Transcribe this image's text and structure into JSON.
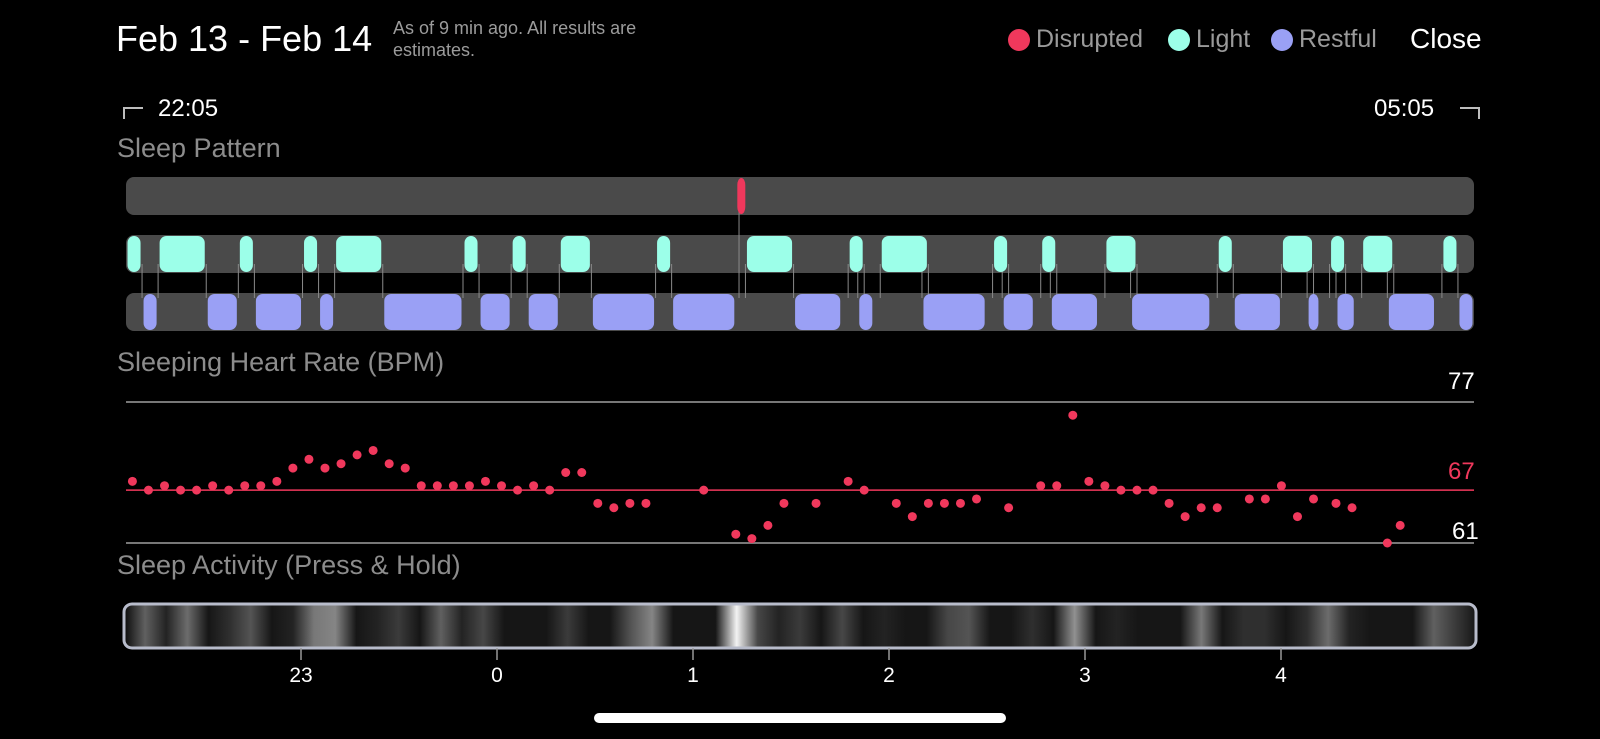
{
  "header": {
    "title": "Feb 13 - Feb 14",
    "subtitle": "As of 9 min ago. All results are estimates.",
    "close_label": "Close"
  },
  "legend": [
    {
      "label": "Disrupted",
      "color": "#f0385c"
    },
    {
      "label": "Light",
      "color": "#9cffe9"
    },
    {
      "label": "Restful",
      "color": "#9aa0f5"
    }
  ],
  "range": {
    "start": "22:05",
    "end": "05:05"
  },
  "sections": {
    "sleep_pattern": "Sleep Pattern",
    "heart_rate": "Sleeping Heart Rate (BPM)",
    "activity": "Sleep Activity (Press & Hold)"
  },
  "heart_rate_labels": {
    "max": "77",
    "avg": "67",
    "min": "61"
  },
  "x_ticks": [
    "23",
    "0",
    "1",
    "2",
    "3",
    "4"
  ],
  "chart_data": [
    {
      "type": "timeline",
      "title": "Sleep Pattern",
      "x_unit": "minutes after 22:05",
      "x_range": [
        0,
        420
      ],
      "rows": [
        {
          "name": "Disrupted",
          "color": "#f0385c",
          "segments": [
            [
              190,
              192
            ]
          ]
        },
        {
          "name": "Light",
          "color": "#9cffe9",
          "segments": [
            [
              0,
              5
            ],
            [
              10,
              25
            ],
            [
              35,
              40
            ],
            [
              55,
              60
            ],
            [
              65,
              80
            ],
            [
              105,
              110
            ],
            [
              120,
              125
            ],
            [
              135,
              145
            ],
            [
              165,
              170
            ],
            [
              193,
              208
            ],
            [
              225,
              230
            ],
            [
              235,
              250
            ],
            [
              270,
              275
            ],
            [
              285,
              290
            ],
            [
              305,
              315
            ],
            [
              340,
              345
            ],
            [
              360,
              370
            ],
            [
              375,
              380
            ],
            [
              385,
              395
            ],
            [
              410,
              415
            ]
          ]
        },
        {
          "name": "Restful",
          "color": "#9aa0f5",
          "segments": [
            [
              5,
              10
            ],
            [
              25,
              35
            ],
            [
              40,
              55
            ],
            [
              60,
              65
            ],
            [
              80,
              105
            ],
            [
              110,
              120
            ],
            [
              125,
              135
            ],
            [
              145,
              165
            ],
            [
              170,
              190
            ],
            [
              208,
              223
            ],
            [
              228,
              233
            ],
            [
              248,
              268
            ],
            [
              273,
              283
            ],
            [
              288,
              303
            ],
            [
              313,
              338
            ],
            [
              345,
              360
            ],
            [
              368,
              372
            ],
            [
              377,
              383
            ],
            [
              393,
              408
            ],
            [
              415,
              420
            ]
          ]
        }
      ]
    },
    {
      "type": "scatter",
      "title": "Sleeping Heart Rate (BPM)",
      "x_unit": "minutes after 22:05",
      "x_range": [
        0,
        420
      ],
      "ylim": [
        61,
        77
      ],
      "reference_lines": {
        "max": 77,
        "average": 67,
        "min": 61
      },
      "points": [
        [
          2,
          68.0
        ],
        [
          7,
          67.0
        ],
        [
          12,
          67.5
        ],
        [
          17,
          67.0
        ],
        [
          22,
          67.0
        ],
        [
          27,
          67.5
        ],
        [
          32,
          67.0
        ],
        [
          37,
          67.5
        ],
        [
          42,
          67.5
        ],
        [
          47,
          68.0
        ],
        [
          52,
          69.5
        ],
        [
          57,
          70.5
        ],
        [
          62,
          69.5
        ],
        [
          67,
          70.0
        ],
        [
          72,
          71.0
        ],
        [
          77,
          71.5
        ],
        [
          82,
          70.0
        ],
        [
          87,
          69.5
        ],
        [
          92,
          67.5
        ],
        [
          97,
          67.5
        ],
        [
          102,
          67.5
        ],
        [
          107,
          67.5
        ],
        [
          112,
          68.0
        ],
        [
          117,
          67.5
        ],
        [
          122,
          67.0
        ],
        [
          127,
          67.5
        ],
        [
          132,
          67.0
        ],
        [
          137,
          69.0
        ],
        [
          142,
          69.0
        ],
        [
          147,
          65.5
        ],
        [
          152,
          65.0
        ],
        [
          157,
          65.5
        ],
        [
          162,
          65.5
        ],
        [
          180,
          67.0
        ],
        [
          190,
          62.0
        ],
        [
          195,
          61.5
        ],
        [
          200,
          63.0
        ],
        [
          205,
          65.5
        ],
        [
          215,
          65.5
        ],
        [
          225,
          68.0
        ],
        [
          230,
          67.0
        ],
        [
          240,
          65.5
        ],
        [
          245,
          64.0
        ],
        [
          250,
          65.5
        ],
        [
          255,
          65.5
        ],
        [
          260,
          65.5
        ],
        [
          265,
          66.0
        ],
        [
          275,
          65.0
        ],
        [
          285,
          67.5
        ],
        [
          290,
          67.5
        ],
        [
          295,
          75.5
        ],
        [
          300,
          68.0
        ],
        [
          305,
          67.5
        ],
        [
          310,
          67.0
        ],
        [
          315,
          67.0
        ],
        [
          320,
          67.0
        ],
        [
          325,
          65.5
        ],
        [
          330,
          64.0
        ],
        [
          335,
          65.0
        ],
        [
          340,
          65.0
        ],
        [
          350,
          66.0
        ],
        [
          355,
          66.0
        ],
        [
          360,
          67.5
        ],
        [
          365,
          64.0
        ],
        [
          370,
          66.0
        ],
        [
          377,
          65.5
        ],
        [
          382,
          65.0
        ],
        [
          393,
          61.0
        ],
        [
          397,
          63.0
        ]
      ]
    },
    {
      "type": "heatmap",
      "title": "Sleep Activity (Press & Hold)",
      "x_unit": "minutes after 22:05",
      "x_range": [
        0,
        420
      ],
      "values_0_to_1": [
        0,
        0.35,
        0.1,
        0.4,
        0.05,
        0.15,
        0.3,
        0.05,
        0.1,
        0.45,
        0.5,
        0.05,
        0.1,
        0.2,
        0.05,
        0.35,
        0.1,
        0.25,
        0.05,
        0.05,
        0.05,
        0.2,
        0.05,
        0.05,
        0.3,
        0.5,
        0.05,
        0.05,
        0.05,
        0.95,
        0.25,
        0.1,
        0.2,
        0.05,
        0.25,
        0.05,
        0.1,
        0.05,
        0.05,
        0.25,
        0.3,
        0.05,
        0.05,
        0.15,
        0.05,
        0.55,
        0.05,
        0.1,
        0.05,
        0.05,
        0.05,
        0.45,
        0.05,
        0.15,
        0.15,
        0.05,
        0.15,
        0.4,
        0.1,
        0.05,
        0.05,
        0.05,
        0.35,
        0.2,
        0.05
      ]
    }
  ]
}
